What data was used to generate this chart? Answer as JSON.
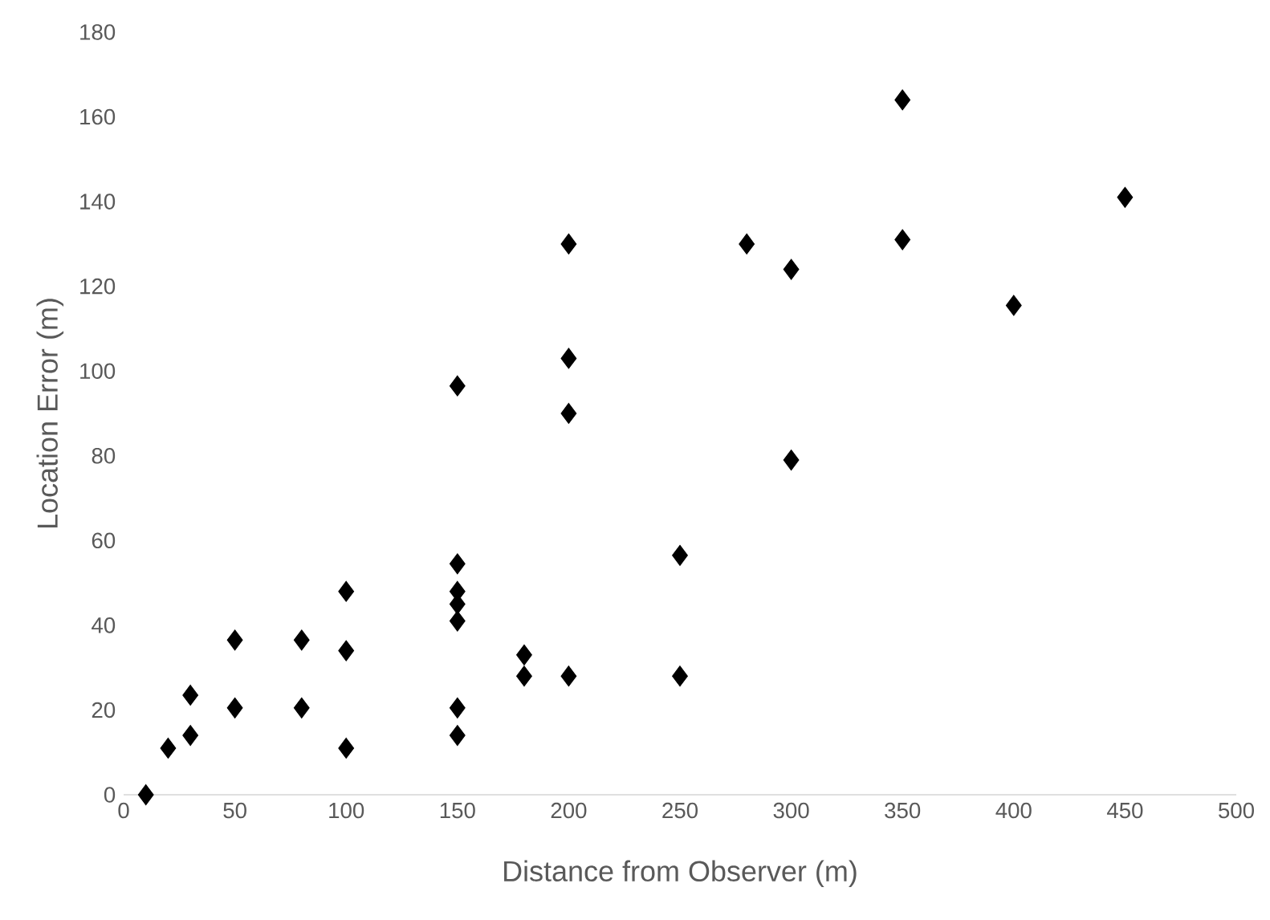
{
  "chart_data": {
    "type": "scatter",
    "xlabel": "Distance from Observer (m)",
    "ylabel": "Location Error (m)",
    "x": [
      10,
      20,
      30,
      30,
      50,
      50,
      80,
      80,
      100,
      100,
      100,
      150,
      150,
      150,
      150,
      150,
      150,
      150,
      180,
      180,
      200,
      200,
      200,
      200,
      250,
      250,
      280,
      300,
      300,
      350,
      350,
      400,
      450
    ],
    "values": [
      0,
      11,
      14,
      23.5,
      20.5,
      36.5,
      20.5,
      36.5,
      11,
      34,
      48,
      14,
      20.5,
      41,
      45,
      48,
      54.5,
      96.5,
      28,
      33,
      28,
      90,
      103,
      130,
      28,
      56.5,
      130,
      79,
      124,
      131,
      164,
      115.5,
      141
    ],
    "color": "#000000",
    "marker": "diamond",
    "grid": false,
    "xlim": [
      0,
      500
    ],
    "xticks": [
      0,
      50,
      100,
      150,
      200,
      250,
      300,
      350,
      400,
      450,
      500
    ],
    "ylim": [
      0,
      180
    ],
    "yticks": [
      0,
      20,
      40,
      60,
      80,
      100,
      120,
      140,
      160,
      180
    ]
  }
}
